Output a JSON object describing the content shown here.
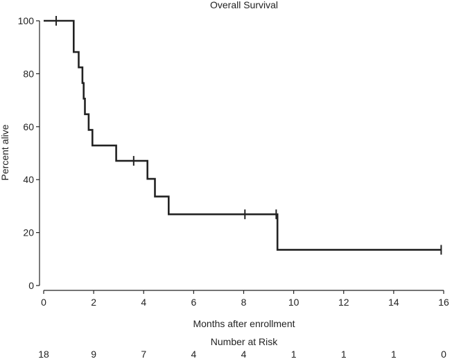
{
  "chart_data": {
    "type": "line",
    "title": "Overall Survival",
    "xlabel": "Months after enrollment",
    "ylabel": "Percent alive",
    "xlim": [
      0,
      16
    ],
    "ylim": [
      0,
      100
    ],
    "x_ticks": [
      0,
      2,
      4,
      6,
      8,
      10,
      12,
      14,
      16
    ],
    "y_ticks": [
      0,
      20,
      40,
      60,
      80,
      100
    ],
    "grid": false,
    "series": [
      {
        "style": "step",
        "points": [
          [
            0,
            100
          ],
          [
            1.2,
            100
          ],
          [
            1.2,
            88.2
          ],
          [
            1.4,
            88.2
          ],
          [
            1.4,
            82.4
          ],
          [
            1.55,
            82.4
          ],
          [
            1.55,
            76.5
          ],
          [
            1.6,
            76.5
          ],
          [
            1.6,
            70.6
          ],
          [
            1.65,
            70.6
          ],
          [
            1.65,
            64.7
          ],
          [
            1.8,
            64.7
          ],
          [
            1.8,
            58.8
          ],
          [
            1.95,
            58.8
          ],
          [
            1.95,
            52.9
          ],
          [
            2.9,
            52.9
          ],
          [
            2.9,
            47.1
          ],
          [
            4.15,
            47.1
          ],
          [
            4.15,
            40.3
          ],
          [
            4.45,
            40.3
          ],
          [
            4.45,
            33.6
          ],
          [
            5.0,
            33.6
          ],
          [
            5.0,
            26.9
          ],
          [
            9.35,
            26.9
          ],
          [
            9.35,
            13.5
          ],
          [
            15.9,
            13.5
          ]
        ],
        "censored": [
          [
            0.5,
            100
          ],
          [
            3.6,
            47.1
          ],
          [
            8.05,
            26.9
          ],
          [
            9.3,
            26.9
          ],
          [
            15.9,
            13.5
          ]
        ]
      }
    ],
    "risk_table": {
      "title": "Number at Risk",
      "times": [
        0,
        2,
        4,
        6,
        8,
        10,
        12,
        14,
        16
      ],
      "counts": [
        "18",
        "9",
        "7",
        "4",
        "4",
        "1",
        "1",
        "1",
        "0"
      ]
    }
  }
}
